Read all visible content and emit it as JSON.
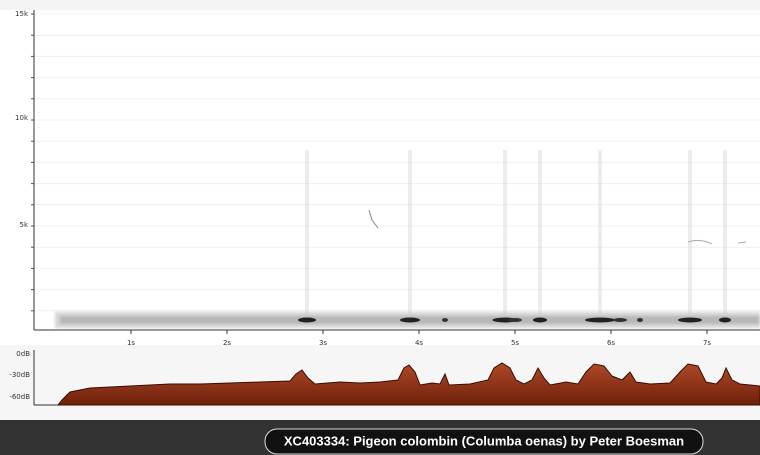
{
  "spectrogram": {
    "y_ticks": [
      "15k",
      "10k",
      "5k"
    ],
    "x_ticks": [
      "1s",
      "2s",
      "3s",
      "4s",
      "5s",
      "6s",
      "7s"
    ]
  },
  "amplitude": {
    "y_ticks": [
      "0dB",
      "-30dB",
      "-60dB"
    ]
  },
  "caption": "XC403334: Pigeon colombin (Columba oenas) by Peter Boesman"
}
